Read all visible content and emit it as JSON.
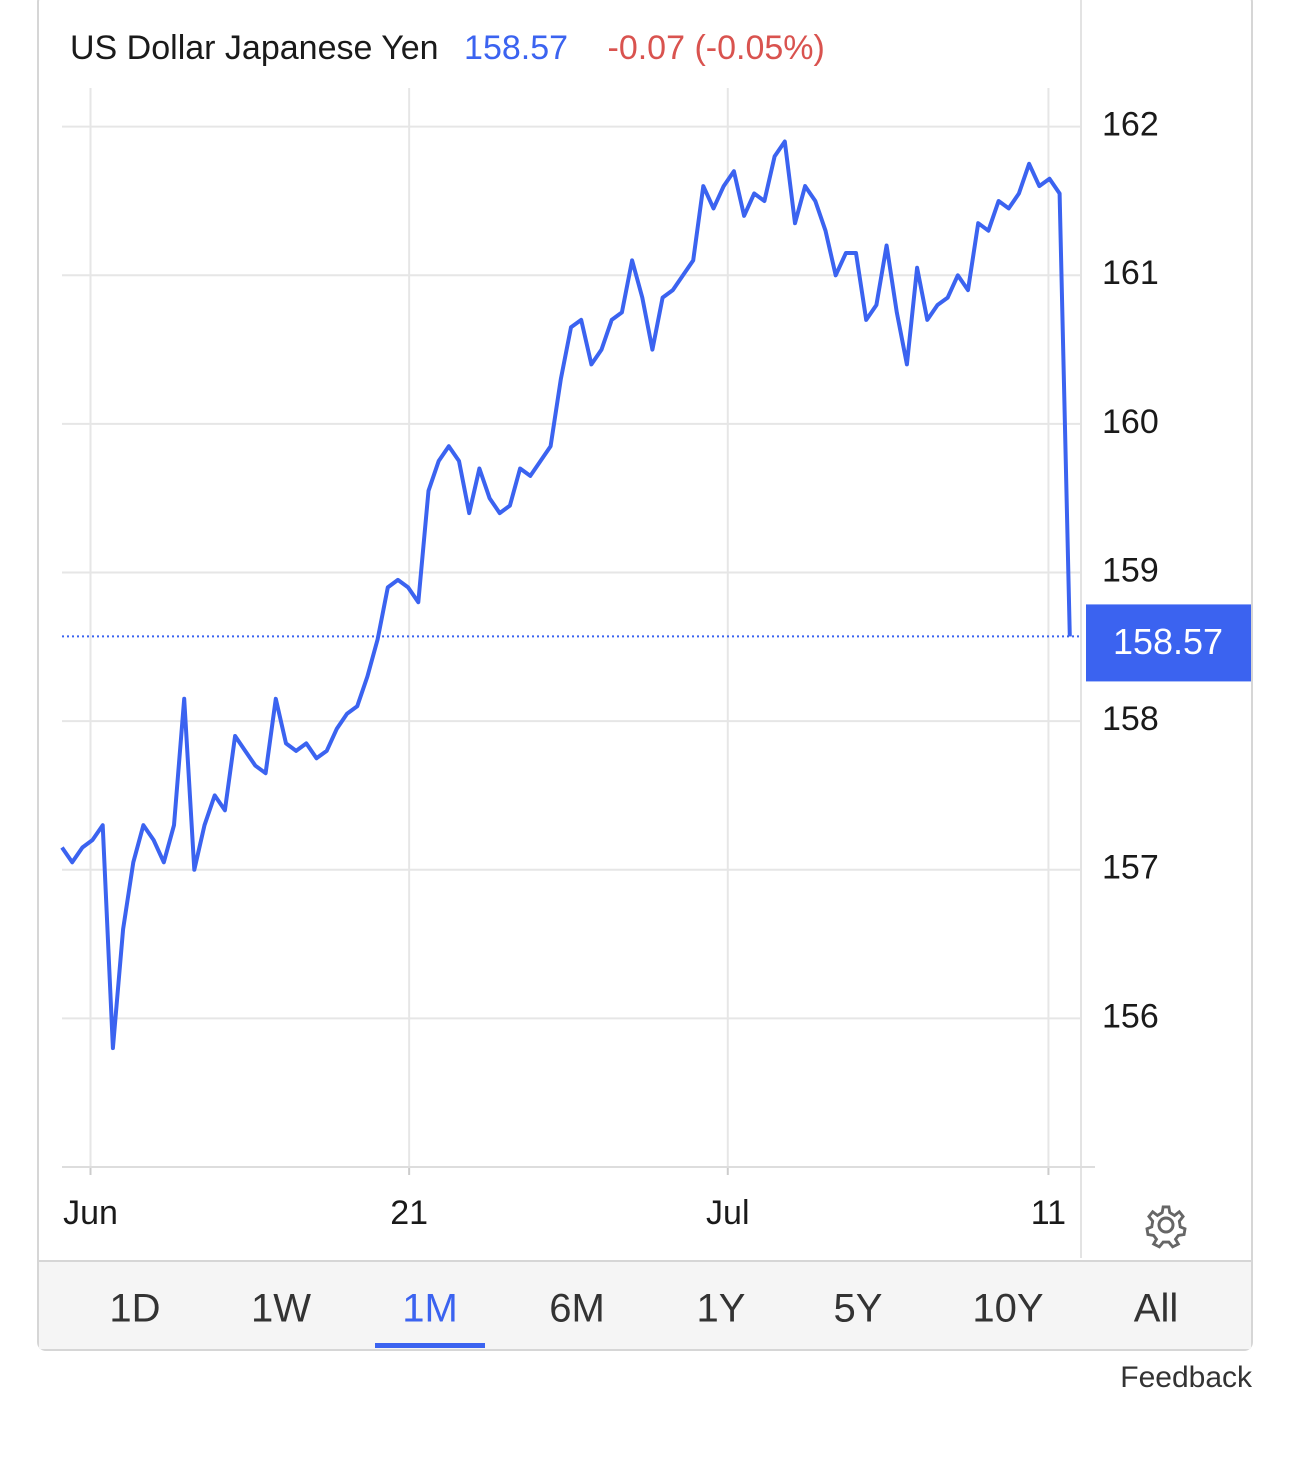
{
  "header": {
    "title": "US Dollar Japanese Yen",
    "price": "158.57",
    "change": "-0.07 (-0.05%)"
  },
  "chart_data": {
    "type": "line",
    "x": [
      0,
      1,
      2,
      3,
      4,
      5,
      6,
      7,
      8,
      9,
      10,
      11,
      12,
      13,
      14,
      15,
      16,
      17,
      18,
      19,
      20,
      21,
      22,
      23,
      24,
      25,
      26,
      27,
      28,
      29,
      30,
      31,
      32,
      33,
      34,
      35,
      36,
      37,
      38,
      39,
      40,
      41,
      42,
      43,
      44,
      45,
      46,
      47,
      48,
      49,
      50,
      51,
      52,
      53,
      54,
      55,
      56,
      57,
      58,
      59,
      60,
      61,
      62,
      63,
      64,
      65,
      66,
      67,
      68,
      69,
      70,
      71,
      72,
      73,
      74,
      75,
      76,
      77,
      78,
      79,
      80,
      81,
      82,
      83,
      84,
      85,
      86,
      87,
      88,
      89,
      90,
      91,
      92,
      93,
      94,
      95,
      96,
      97,
      98,
      99
    ],
    "series": [
      {
        "name": "USD/JPY",
        "color": "#3b63f0",
        "values": [
          157.15,
          157.05,
          157.15,
          157.2,
          157.3,
          155.8,
          156.6,
          157.05,
          157.3,
          157.2,
          157.05,
          157.3,
          158.15,
          157.0,
          157.3,
          157.5,
          157.4,
          157.9,
          157.8,
          157.7,
          157.65,
          158.15,
          157.85,
          157.8,
          157.85,
          157.75,
          157.8,
          157.95,
          158.05,
          158.1,
          158.3,
          158.55,
          158.9,
          158.95,
          158.9,
          158.8,
          159.55,
          159.75,
          159.85,
          159.75,
          159.4,
          159.7,
          159.5,
          159.4,
          159.45,
          159.7,
          159.65,
          159.75,
          159.85,
          160.3,
          160.65,
          160.7,
          160.4,
          160.5,
          160.7,
          160.75,
          161.1,
          160.85,
          160.5,
          160.85,
          160.9,
          161.0,
          161.1,
          161.6,
          161.45,
          161.6,
          161.7,
          161.4,
          161.55,
          161.5,
          161.8,
          161.9,
          161.35,
          161.6,
          161.5,
          161.3,
          161.0,
          161.15,
          161.15,
          160.7,
          160.8,
          161.2,
          160.75,
          160.4,
          161.05,
          160.7,
          160.8,
          160.85,
          161.0,
          160.9,
          161.35,
          161.3,
          161.5,
          161.45,
          161.55,
          161.75,
          161.6,
          161.65,
          161.55,
          158.57
        ]
      }
    ],
    "xlim": [
      0,
      100
    ],
    "xticks": [
      {
        "value": 2.8,
        "label": "Jun"
      },
      {
        "value": 34.1,
        "label": "21"
      },
      {
        "value": 65.4,
        "label": "Jul"
      },
      {
        "value": 96.9,
        "label": "11"
      }
    ],
    "ylim": [
      155,
      162.26
    ],
    "yticks": [
      156,
      157,
      158,
      159,
      160,
      161,
      162
    ],
    "grid": true
  },
  "ranges": {
    "options": [
      "1D",
      "1W",
      "1M",
      "6M",
      "1Y",
      "5Y",
      "10Y",
      "All"
    ],
    "selected_index": 2
  },
  "footer": {
    "feedback": "Feedback"
  }
}
